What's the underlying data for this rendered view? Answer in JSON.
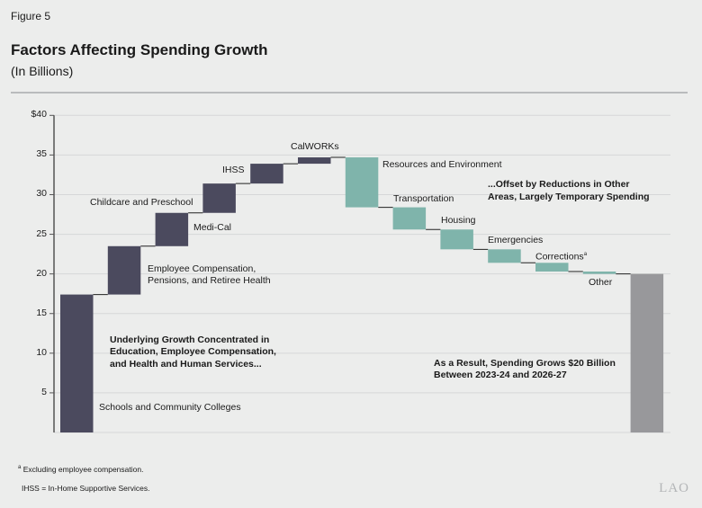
{
  "figure_label": "Figure 5",
  "title": "Factors Affecting Spending Growth",
  "subtitle": "(In Billions)",
  "chart_data": {
    "type": "waterfall",
    "ylim": [
      0,
      40
    ],
    "yticks": [
      "$40",
      "35",
      "30",
      "25",
      "20",
      "15",
      "10",
      "5"
    ],
    "ytick_values": [
      40,
      35,
      30,
      25,
      20,
      15,
      10,
      5
    ],
    "grid": true,
    "categories": [
      "Schools and Community Colleges",
      "Employee Compensation, Pensions, and Retiree Health",
      "Childcare and Preschool",
      "Medi-Cal",
      "IHSS",
      "CalWORKs",
      "Resources and Environment",
      "Transportation",
      "Housing",
      "Emergencies",
      "Corrections",
      "Other",
      "Total"
    ],
    "values": [
      17.4,
      6.1,
      4.2,
      3.7,
      2.5,
      0.8,
      -6.3,
      -2.8,
      -2.5,
      -1.7,
      -1.1,
      -0.3,
      20.0
    ],
    "labels": {
      "schools": "Schools and Community Colleges",
      "employee_1": "Employee Compensation,",
      "employee_2": "Pensions, and Retiree Health",
      "childcare": "Childcare and Preschool",
      "medical": "Medi-Cal",
      "ihss": "IHSS",
      "calworks": "CalWORKs",
      "resources": "Resources and Environment",
      "transportation": "Transportation",
      "housing": "Housing",
      "emergencies": "Emergencies",
      "corrections": "Corrections",
      "corrections_note": "a",
      "other": "Other"
    },
    "annotations": {
      "growth_1": "Underlying Growth Concentrated in",
      "growth_2": "Education, Employee Compensation,",
      "growth_3": "and Health and Human Services...",
      "offset_1": "...Offset by Reductions in Other",
      "offset_2": "Areas, Largely Temporary Spending",
      "result_1": "As a Result, Spending Grows $20 Billion",
      "result_2": "Between 2023-24 and 2026-27"
    },
    "colors": {
      "increase": "#4b4a5e",
      "decrease": "#7fb4ab",
      "total": "#98989b"
    }
  },
  "footnotes": {
    "a_mark": "a",
    "a_text": "Excluding employee compensation.",
    "ihss": "IHSS = In-Home Supportive Services."
  },
  "logo": "LAO"
}
